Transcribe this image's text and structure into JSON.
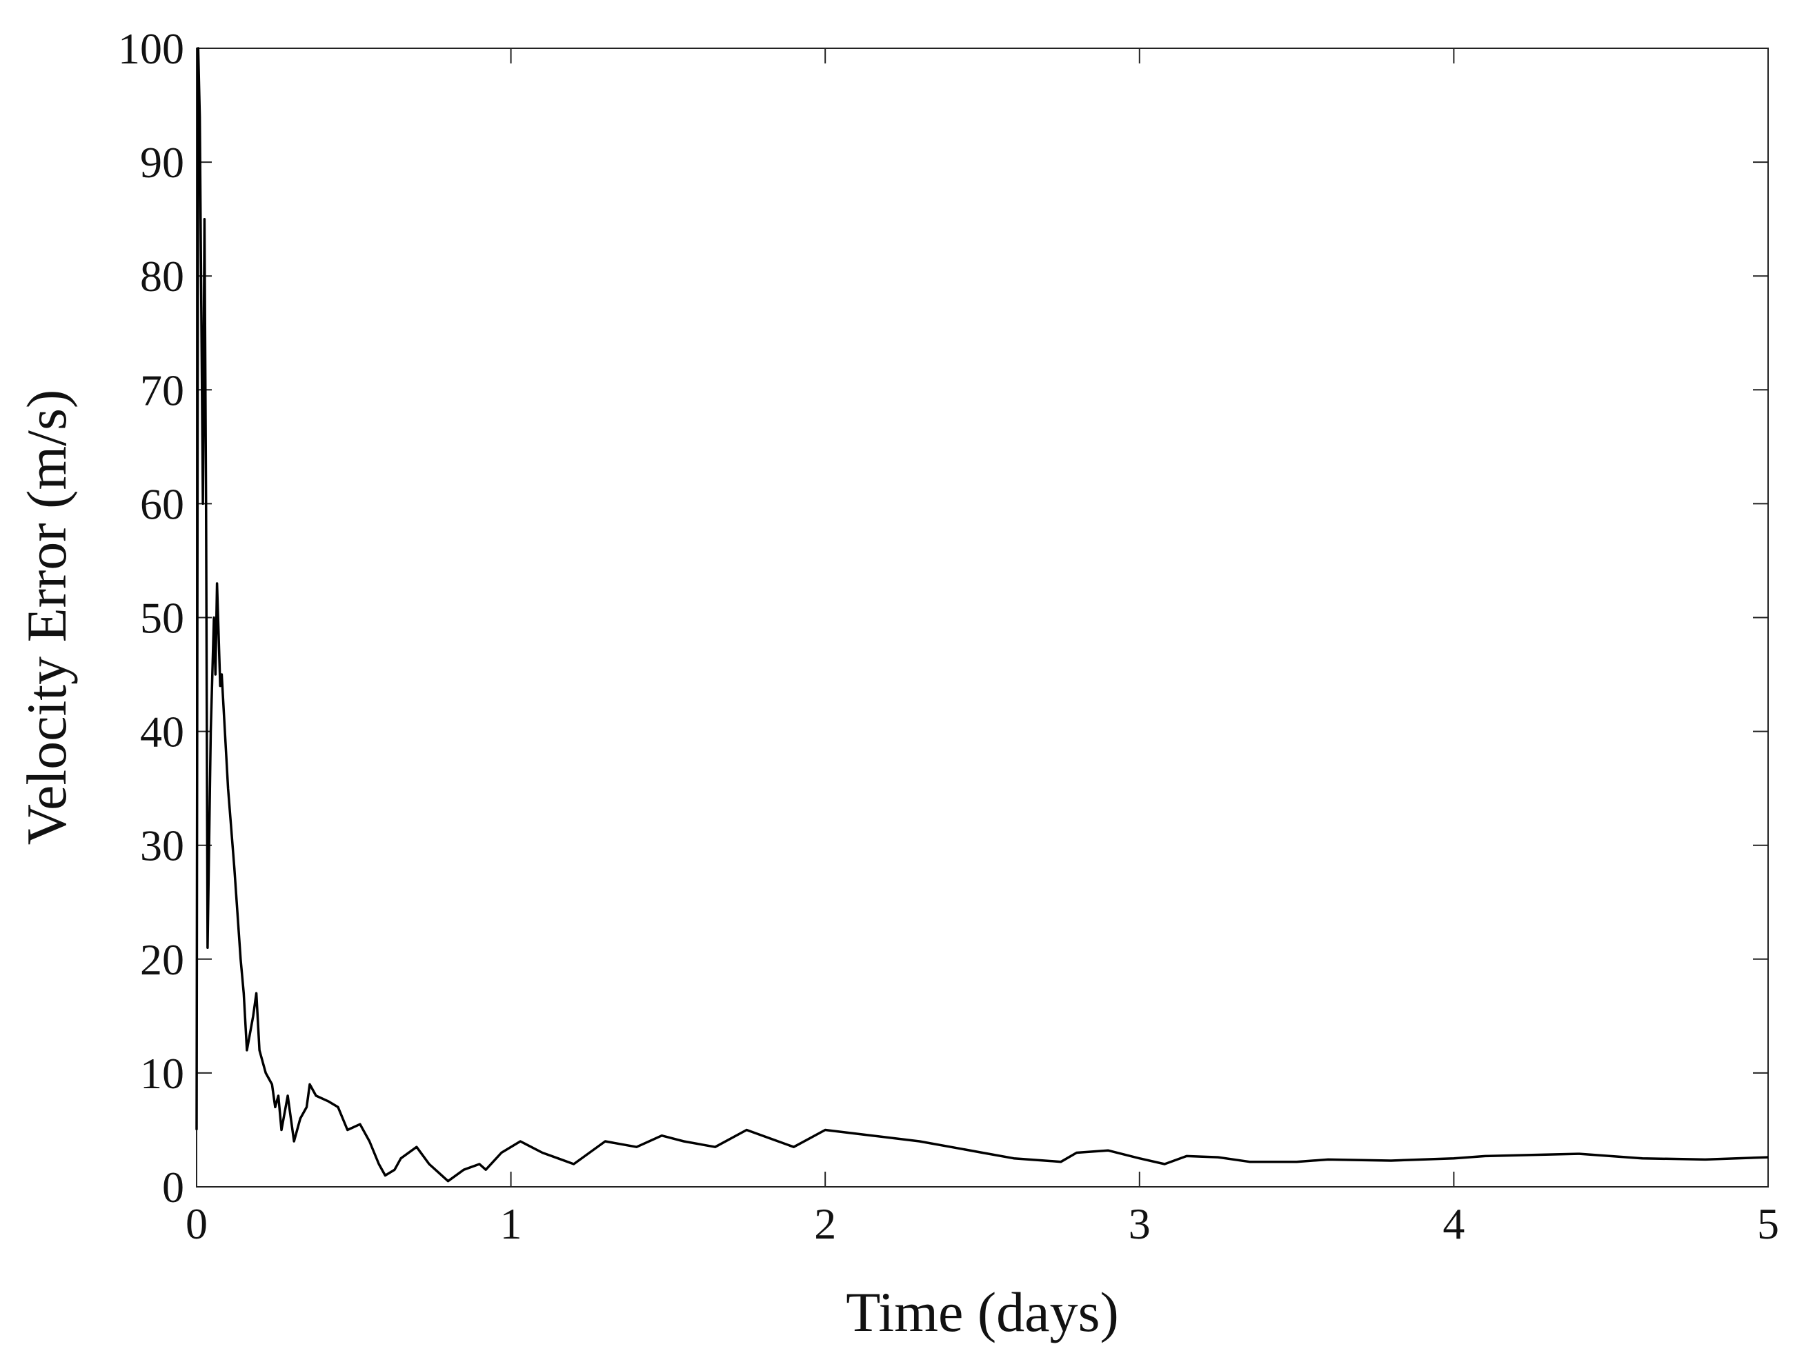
{
  "chart_data": {
    "type": "line",
    "x_label": "Time (days)",
    "y_label": "Velocity Error (m/s)",
    "xlim": [
      0,
      5
    ],
    "xticks": [
      0,
      1,
      2,
      3,
      4,
      5
    ],
    "ylim": [
      0,
      100
    ],
    "yticks": [
      0,
      10,
      20,
      30,
      40,
      50,
      60,
      70,
      80,
      90,
      100
    ],
    "grid": false,
    "series": [
      {
        "color": "#000000",
        "x": [
          0,
          0.005,
          0.01,
          0.02,
          0.025,
          0.03,
          0.035,
          0.045,
          0.055,
          0.06,
          0.065,
          0.075,
          0.08,
          0.1,
          0.12,
          0.14,
          0.15,
          0.16,
          0.18,
          0.19,
          0.2,
          0.22,
          0.24,
          0.25,
          0.26,
          0.27,
          0.29,
          0.31,
          0.33,
          0.35,
          0.36,
          0.38,
          0.42,
          0.45,
          0.48,
          0.52,
          0.55,
          0.58,
          0.6,
          0.63,
          0.65,
          0.7,
          0.74,
          0.8,
          0.85,
          0.9,
          0.92,
          0.97,
          1.03,
          1.1,
          1.15,
          1.2,
          1.25,
          1.3,
          1.4,
          1.48,
          1.55,
          1.65,
          1.75,
          1.85,
          1.9,
          2.0,
          2.15,
          2.3,
          2.4,
          2.5,
          2.6,
          2.75,
          2.8,
          2.9,
          3.0,
          3.08,
          3.15,
          3.25,
          3.35,
          3.5,
          3.6,
          3.8,
          4.0,
          4.1,
          4.4,
          4.6,
          4.8,
          5.0
        ],
        "values": [
          5,
          100,
          94,
          60,
          85,
          60,
          21,
          40,
          50,
          45,
          53,
          44,
          45,
          35,
          28,
          20,
          17,
          12,
          15,
          17,
          12,
          10,
          9,
          7,
          8,
          5,
          8,
          4,
          6,
          7,
          9,
          8,
          7.5,
          7,
          5,
          5.5,
          4,
          2,
          1,
          1.5,
          2.5,
          3.5,
          2,
          0.5,
          1.5,
          2,
          1.5,
          3,
          4,
          3,
          2.5,
          2,
          3,
          4,
          3.5,
          4.5,
          4,
          3.5,
          5,
          4,
          3.5,
          5,
          4.5,
          4,
          3.5,
          3,
          2.5,
          2.2,
          3,
          3.2,
          2.5,
          2,
          2.7,
          2.6,
          2.2,
          2.2,
          2.4,
          2.3,
          2.5,
          2.7,
          2.9,
          2.5,
          2.4,
          2.6
        ]
      }
    ]
  }
}
